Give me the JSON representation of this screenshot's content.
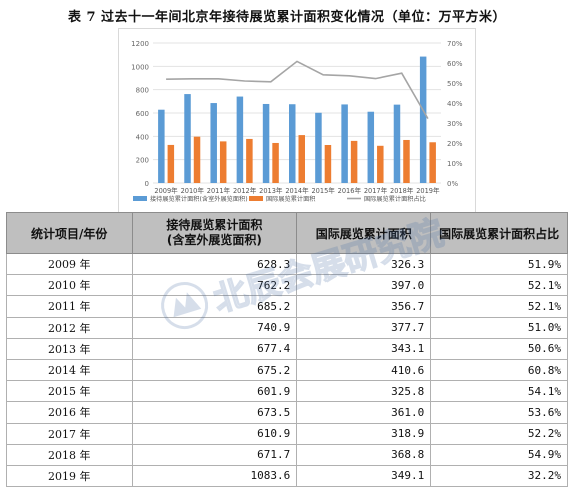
{
  "title": "表 7  过去十一年间北京年接待展览累计面积变化情况（单位：万平方米）",
  "colors": {
    "bar1": "#5b9bd5",
    "bar2": "#ed7d31",
    "line": "#a5a5a5",
    "header_bg": "#bfbfbf"
  },
  "chart_data": {
    "type": "bar",
    "categories": [
      "2009年",
      "2010年",
      "2011年",
      "2012年",
      "2013年",
      "2014年",
      "2015年",
      "2016年",
      "2017年",
      "2018年",
      "2019年"
    ],
    "series": [
      {
        "name": "接待展览累计面积(含室外展览面积)",
        "kind": "bar",
        "axis": "left",
        "values": [
          628.3,
          762.2,
          685.2,
          740.9,
          677.4,
          675.2,
          601.9,
          673.5,
          610.9,
          671.7,
          1083.6
        ]
      },
      {
        "name": "国际展览累计面积",
        "kind": "bar",
        "axis": "left",
        "values": [
          326.3,
          397.0,
          356.7,
          377.7,
          343.1,
          410.6,
          325.8,
          361.0,
          318.9,
          368.8,
          349.1
        ]
      },
      {
        "name": "国际展览累计面积占比",
        "kind": "line",
        "axis": "right",
        "values": [
          51.9,
          52.1,
          52.1,
          51.0,
          50.6,
          60.8,
          54.1,
          53.6,
          52.2,
          54.9,
          32.2
        ]
      }
    ],
    "y_ticks": [
      "0",
      "200",
      "400",
      "600",
      "800",
      "1000",
      "1200"
    ],
    "y2_ticks": [
      "0%",
      "10%",
      "20%",
      "30%",
      "40%",
      "50%",
      "60%",
      "70%"
    ],
    "ylim": [
      0,
      1200
    ],
    "y2lim": [
      0,
      70
    ],
    "grid": true,
    "legend_position": "bottom"
  },
  "table": {
    "headers": [
      "统计项目/年份",
      "接待展览累计面积\n(含室外展览面积)",
      "国际展览累计面积",
      "国际展览累计面积占比"
    ],
    "rows": [
      [
        "2009 年",
        "628.3",
        "326.3",
        "51.9%"
      ],
      [
        "2010 年",
        "762.2",
        "397.0",
        "52.1%"
      ],
      [
        "2011 年",
        "685.2",
        "356.7",
        "52.1%"
      ],
      [
        "2012 年",
        "740.9",
        "377.7",
        "51.0%"
      ],
      [
        "2013 年",
        "677.4",
        "343.1",
        "50.6%"
      ],
      [
        "2014 年",
        "675.2",
        "410.6",
        "60.8%"
      ],
      [
        "2015 年",
        "601.9",
        "325.8",
        "54.1%"
      ],
      [
        "2016 年",
        "673.5",
        "361.0",
        "53.6%"
      ],
      [
        "2017 年",
        "610.9",
        "318.9",
        "52.2%"
      ],
      [
        "2018 年",
        "671.7",
        "368.8",
        "54.9%"
      ],
      [
        "2019 年",
        "1083.6",
        "349.1",
        "32.2%"
      ]
    ]
  },
  "watermark": {
    "text": "北辰会展研究院"
  }
}
